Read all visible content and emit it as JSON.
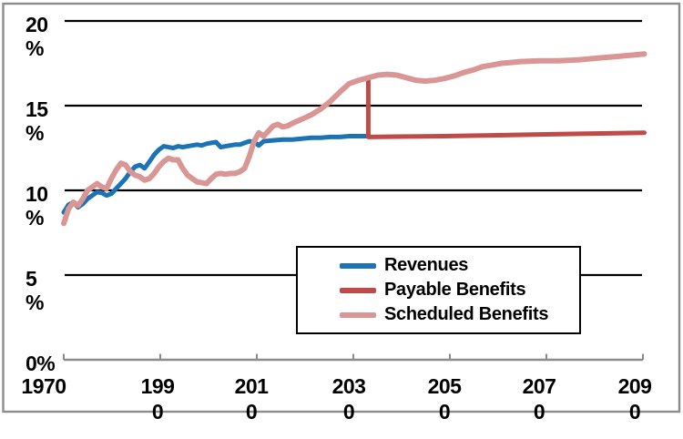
{
  "window": {
    "background_color": "#FFFFFF",
    "frame_border_color": "#8C8C8C",
    "gridline_color": "#000000",
    "axis_line_color": "#8B8B8B"
  },
  "chart_data": {
    "type": "line",
    "title": "",
    "xlabel": "",
    "ylabel": "%",
    "grid": true,
    "legend_position": "inside-lower-center",
    "x_axis": {
      "range": [
        1970,
        2092
      ],
      "tick_years": [
        1970,
        1990,
        2010,
        2030,
        2050,
        2070,
        2090
      ],
      "tick_labels": [
        "1970",
        "199\n0",
        "201\n0",
        "203\n0",
        "205\n0",
        "207\n0",
        "209\n0"
      ]
    },
    "y_axis": {
      "range": [
        0,
        20
      ],
      "unit": "%",
      "tick_values": [
        20,
        15,
        10,
        5,
        0
      ],
      "tick_labels": [
        "20\n%",
        "15\n%",
        "10\n%",
        "5\n%",
        "0%"
      ]
    },
    "series": [
      {
        "name": "Revenues",
        "color": "#1B73B6",
        "points": [
          [
            1970,
            8.7
          ],
          [
            1971,
            9.15
          ],
          [
            1972,
            9.3
          ],
          [
            1973,
            9.0
          ],
          [
            1974,
            9.2
          ],
          [
            1975,
            9.5
          ],
          [
            1976,
            9.7
          ],
          [
            1977,
            9.9
          ],
          [
            1978,
            9.85
          ],
          [
            1979,
            9.7
          ],
          [
            1980,
            9.8
          ],
          [
            1981,
            10.1
          ],
          [
            1982,
            10.4
          ],
          [
            1983,
            10.7
          ],
          [
            1984,
            11.1
          ],
          [
            1985,
            11.4
          ],
          [
            1986,
            11.5
          ],
          [
            1987,
            11.3
          ],
          [
            1988,
            11.7
          ],
          [
            1989,
            12.1
          ],
          [
            1990,
            12.4
          ],
          [
            1991,
            12.6
          ],
          [
            1992,
            12.55
          ],
          [
            1993,
            12.5
          ],
          [
            1994,
            12.6
          ],
          [
            1995,
            12.55
          ],
          [
            1996,
            12.6
          ],
          [
            1997,
            12.65
          ],
          [
            1998,
            12.7
          ],
          [
            1999,
            12.65
          ],
          [
            2000,
            12.75
          ],
          [
            2001,
            12.8
          ],
          [
            2002,
            12.85
          ],
          [
            2003,
            12.55
          ],
          [
            2004,
            12.6
          ],
          [
            2005,
            12.65
          ],
          [
            2006,
            12.7
          ],
          [
            2007,
            12.7
          ],
          [
            2008,
            12.8
          ],
          [
            2009,
            12.9
          ],
          [
            2010,
            12.85
          ],
          [
            2011,
            12.65
          ],
          [
            2012,
            12.9
          ],
          [
            2014,
            12.95
          ],
          [
            2016,
            13.0
          ],
          [
            2018,
            13.0
          ],
          [
            2020,
            13.05
          ],
          [
            2022,
            13.1
          ],
          [
            2024,
            13.1
          ],
          [
            2026,
            13.15
          ],
          [
            2028,
            13.15
          ],
          [
            2030,
            13.2
          ],
          [
            2034,
            13.2
          ]
        ]
      },
      {
        "name": "Payable Benefits",
        "color": "#BE4B48",
        "points": [
          [
            2034,
            16.6
          ],
          [
            2034,
            13.15
          ],
          [
            2040,
            13.17
          ],
          [
            2050,
            13.2
          ],
          [
            2060,
            13.25
          ],
          [
            2070,
            13.3
          ],
          [
            2080,
            13.35
          ],
          [
            2092,
            13.4
          ]
        ]
      },
      {
        "name": "Scheduled Benefits",
        "color": "#D99694",
        "points": [
          [
            1970,
            8.05
          ],
          [
            1971,
            8.9
          ],
          [
            1972,
            9.3
          ],
          [
            1973,
            9.1
          ],
          [
            1974,
            9.5
          ],
          [
            1975,
            10.0
          ],
          [
            1976,
            10.2
          ],
          [
            1977,
            10.4
          ],
          [
            1978,
            10.2
          ],
          [
            1979,
            10.1
          ],
          [
            1980,
            10.7
          ],
          [
            1981,
            11.2
          ],
          [
            1982,
            11.6
          ],
          [
            1983,
            11.5
          ],
          [
            1984,
            11.1
          ],
          [
            1985,
            10.9
          ],
          [
            1986,
            10.8
          ],
          [
            1987,
            10.6
          ],
          [
            1988,
            10.7
          ],
          [
            1989,
            11.0
          ],
          [
            1990,
            11.4
          ],
          [
            1991,
            11.7
          ],
          [
            1992,
            11.9
          ],
          [
            1993,
            11.8
          ],
          [
            1994,
            11.8
          ],
          [
            1995,
            11.3
          ],
          [
            1996,
            10.9
          ],
          [
            1997,
            10.7
          ],
          [
            1998,
            10.5
          ],
          [
            1999,
            10.45
          ],
          [
            2000,
            10.4
          ],
          [
            2001,
            10.7
          ],
          [
            2002,
            10.95
          ],
          [
            2003,
            11.0
          ],
          [
            2004,
            10.95
          ],
          [
            2005,
            11.0
          ],
          [
            2006,
            11.0
          ],
          [
            2007,
            11.1
          ],
          [
            2008,
            11.3
          ],
          [
            2009,
            12.0
          ],
          [
            2010,
            12.9
          ],
          [
            2011,
            13.4
          ],
          [
            2012,
            13.2
          ],
          [
            2013,
            13.5
          ],
          [
            2014,
            13.8
          ],
          [
            2015,
            13.9
          ],
          [
            2016,
            13.75
          ],
          [
            2017,
            13.8
          ],
          [
            2018,
            13.95
          ],
          [
            2020,
            14.2
          ],
          [
            2022,
            14.45
          ],
          [
            2024,
            14.8
          ],
          [
            2026,
            15.25
          ],
          [
            2028,
            15.8
          ],
          [
            2030,
            16.3
          ],
          [
            2032,
            16.5
          ],
          [
            2034,
            16.65
          ],
          [
            2036,
            16.8
          ],
          [
            2038,
            16.85
          ],
          [
            2040,
            16.8
          ],
          [
            2042,
            16.65
          ],
          [
            2044,
            16.5
          ],
          [
            2046,
            16.45
          ],
          [
            2048,
            16.5
          ],
          [
            2050,
            16.6
          ],
          [
            2052,
            16.75
          ],
          [
            2054,
            16.95
          ],
          [
            2056,
            17.1
          ],
          [
            2058,
            17.3
          ],
          [
            2060,
            17.4
          ],
          [
            2062,
            17.5
          ],
          [
            2064,
            17.55
          ],
          [
            2066,
            17.6
          ],
          [
            2070,
            17.65
          ],
          [
            2074,
            17.65
          ],
          [
            2078,
            17.7
          ],
          [
            2082,
            17.8
          ],
          [
            2086,
            17.9
          ],
          [
            2090,
            18.0
          ],
          [
            2092,
            18.05
          ]
        ]
      }
    ]
  }
}
